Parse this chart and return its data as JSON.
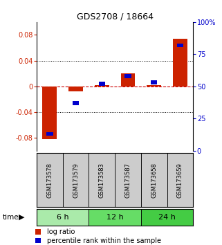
{
  "title": "GDS2708 / 18664",
  "samples": [
    "GSM173578",
    "GSM173579",
    "GSM173583",
    "GSM173587",
    "GSM173658",
    "GSM173659"
  ],
  "log_ratios": [
    -0.082,
    -0.008,
    0.002,
    0.02,
    0.002,
    0.074
  ],
  "percentile_ranks": [
    13,
    37,
    52,
    58,
    53,
    82
  ],
  "groups": [
    {
      "label": "6 h",
      "color": "#aaeaaa",
      "start": 0,
      "end": 1
    },
    {
      "label": "12 h",
      "color": "#66dd66",
      "start": 2,
      "end": 3
    },
    {
      "label": "24 h",
      "color": "#44cc44",
      "start": 4,
      "end": 5
    }
  ],
  "ylim_left": [
    -0.1,
    0.1
  ],
  "ylim_right": [
    0,
    100
  ],
  "yticks_left": [
    -0.08,
    -0.04,
    0,
    0.04,
    0.08
  ],
  "yticks_right": [
    0,
    25,
    50,
    75,
    100
  ],
  "bar_color_red": "#cc2200",
  "bar_color_blue": "#0000cc",
  "zero_line_color": "#cc0000",
  "sample_box_color": "#cccccc",
  "bg_color": "#ffffff",
  "bar_width": 0.55,
  "blue_bar_width": 0.25,
  "title_fontsize": 9,
  "tick_fontsize": 7,
  "label_fontsize": 6,
  "group_fontsize": 8
}
